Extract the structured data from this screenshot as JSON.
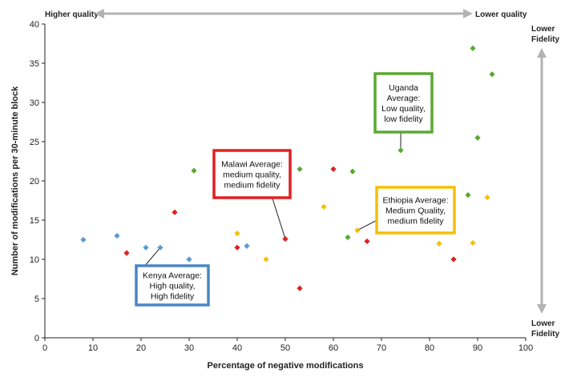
{
  "chart_data": {
    "type": "scatter",
    "xlabel": "Percentage of negative modifications",
    "ylabel": "Number of modifications per 30-minute block",
    "xlim": [
      0,
      100
    ],
    "ylim": [
      0,
      40
    ],
    "xticks": [
      0,
      10,
      20,
      30,
      40,
      50,
      60,
      70,
      80,
      90,
      100
    ],
    "yticks": [
      0,
      5,
      10,
      15,
      20,
      25,
      30,
      35,
      40
    ],
    "grid": false,
    "top_left_label": "Higher quality",
    "top_right_label": "Lower quality",
    "right_top_label": [
      "Lower",
      "Fidelity"
    ],
    "right_bottom_label": [
      "Lower",
      "Fidelity"
    ],
    "series": [
      {
        "name": "Kenya",
        "color": "#5b9bd5",
        "points": [
          [
            8,
            12.5
          ],
          [
            15,
            13
          ],
          [
            21,
            11.5
          ],
          [
            24,
            11.5
          ],
          [
            30,
            10
          ],
          [
            42,
            11.7
          ]
        ]
      },
      {
        "name": "Malawi",
        "color": "#e02020",
        "points": [
          [
            17,
            10.8
          ],
          [
            27,
            16
          ],
          [
            40,
            11.5
          ],
          [
            50,
            12.6
          ],
          [
            53,
            6.3
          ],
          [
            60,
            21.5
          ],
          [
            67,
            12.3
          ],
          [
            85,
            10
          ]
        ]
      },
      {
        "name": "Ethiopia",
        "color": "#f5c000",
        "points": [
          [
            40,
            13.3
          ],
          [
            46,
            10
          ],
          [
            58,
            16.7
          ],
          [
            65,
            13.7
          ],
          [
            82,
            12
          ],
          [
            89,
            12.1
          ],
          [
            92,
            17.9
          ]
        ]
      },
      {
        "name": "Uganda",
        "color": "#5aa832",
        "points": [
          [
            31,
            21.3
          ],
          [
            53,
            21.5
          ],
          [
            63,
            12.8
          ],
          [
            64,
            21.2
          ],
          [
            74,
            23.9
          ],
          [
            88,
            18.2
          ],
          [
            89,
            36.9
          ],
          [
            90,
            25.5
          ],
          [
            93,
            33.6
          ]
        ]
      }
    ],
    "annotations": [
      {
        "country": "Kenya",
        "lines": [
          "Kenya Average:",
          "High quality,",
          "High fidelity"
        ],
        "color": "#4a86c8",
        "target": [
          24,
          11.5
        ]
      },
      {
        "country": "Malawi",
        "lines": [
          "Malawi Average:",
          "medium quality,",
          "medium fidelity"
        ],
        "color": "#e02020",
        "target": [
          50,
          12.6
        ]
      },
      {
        "country": "Ethiopia",
        "lines": [
          "Ethiopia Average:",
          "Medium Quality,",
          "medium fidelity"
        ],
        "color": "#f5c000",
        "target": [
          65,
          13.7
        ]
      },
      {
        "country": "Uganda",
        "lines": [
          "Uganda",
          "Average:",
          "Low quality,",
          "low fidelity"
        ],
        "color": "#5aa832",
        "target": [
          74,
          23.9
        ]
      }
    ]
  }
}
